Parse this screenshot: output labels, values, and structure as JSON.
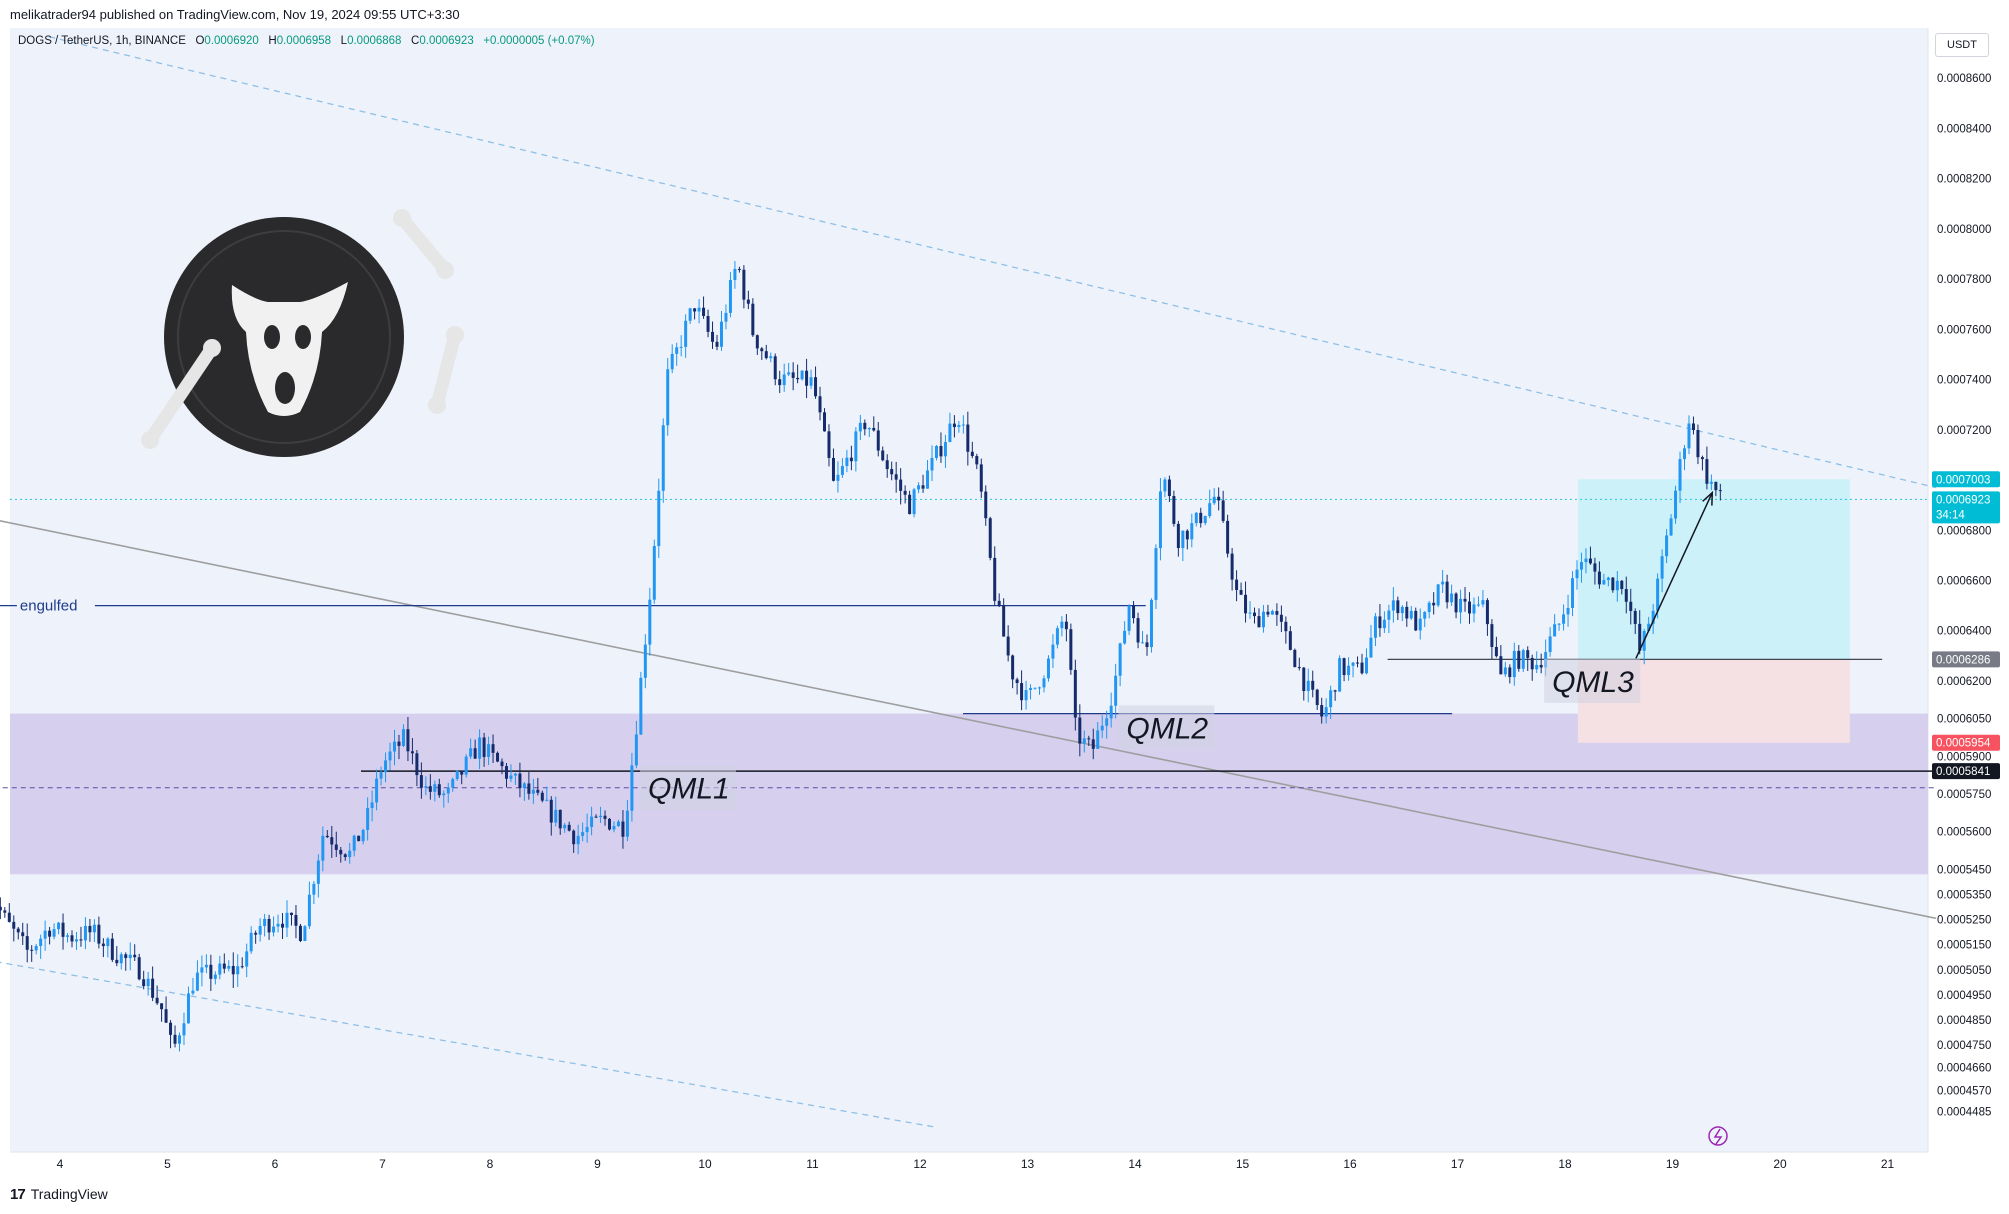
{
  "header": {
    "publish_text": "melikatrader94 published on TradingView.com, Nov 19, 2024 09:55 UTC+3:30"
  },
  "legend": {
    "symbol": "DOGS / TetherUS, 1h, BINANCE",
    "o_label": "O",
    "o_value": "0.0006920",
    "h_label": "H",
    "h_value": "0.0006958",
    "l_label": "L",
    "l_value": "0.0006868",
    "c_label": "C",
    "c_value": "0.0006923",
    "change": "+0.0000005 (+0.07%)"
  },
  "currency": "USDT",
  "footer": {
    "logo": "17",
    "brand": "TradingView"
  },
  "colors": {
    "up": "#2196f3",
    "down": "#152b6b",
    "zone": "#d6d0ee",
    "target": "#ccf1f8",
    "stop": "#f5e0e3",
    "trendline": "#8fbfe6",
    "channel": "#9e9e9e",
    "price_line": "#26c6da"
  },
  "chart_data": {
    "type": "candlestick",
    "symbol": "DOGS / TetherUS",
    "timeframe": "1h",
    "ylim": [
      0.000442,
      0.000876
    ],
    "x_ticks": [
      "4",
      "5",
      "6",
      "7",
      "8",
      "9",
      "10",
      "11",
      "12",
      "13",
      "14",
      "15",
      "16",
      "17",
      "18",
      "19",
      "20",
      "21"
    ],
    "y_ticks": [
      "0.0008600",
      "0.0008400",
      "0.0008200",
      "0.0008000",
      "0.0007800",
      "0.0007600",
      "0.0007400",
      "0.0007200",
      "0.0006800",
      "0.0006600",
      "0.0006400",
      "0.0006200",
      "0.0006050",
      "0.0005900",
      "0.0005750",
      "0.0005600",
      "0.0005450",
      "0.0005350",
      "0.0005250",
      "0.0005150",
      "0.0005050",
      "0.0004950",
      "0.0004850",
      "0.0004750",
      "0.0004660",
      "0.0004570",
      "0.0004485"
    ],
    "price_tags": [
      {
        "label": "0.0007003",
        "value": 0.0007003,
        "bg": "#00bcd4",
        "fg": "#ffffff"
      },
      {
        "label": "0.0006923",
        "value": 0.0006923,
        "bg": "#00bcd4",
        "fg": "#ffffff",
        "sub": "34:14"
      },
      {
        "label": "0.0006286",
        "value": 0.0006286,
        "bg": "#787b86",
        "fg": "#ffffff"
      },
      {
        "label": "0.0005954",
        "value": 0.0005954,
        "bg": "#f7525f",
        "fg": "#ffffff"
      },
      {
        "label": "0.0005841",
        "value": 0.0005841,
        "bg": "#131722",
        "fg": "#ffffff"
      }
    ],
    "annotations": [
      {
        "text": "engulfed",
        "day": 3.32,
        "value": 0.00065
      },
      {
        "text": "QML1",
        "day": 9.47,
        "value": 0.0005775
      },
      {
        "text": "QML2",
        "day": 13.92,
        "value": 0.0006015
      },
      {
        "text": "QML3",
        "day": 17.88,
        "value": 0.00062
      }
    ],
    "levels": [
      {
        "name": "engulfed",
        "value": 0.00065,
        "from_day": 3.3,
        "to_day": 14.1
      },
      {
        "name": "QML1",
        "value": 0.0005841,
        "from_day": 6.8,
        "to_day": 21.45
      },
      {
        "name": "QML2",
        "value": 0.000607,
        "from_day": 12.4,
        "to_day": 16.95
      },
      {
        "name": "QML3",
        "value": 0.0006286,
        "from_day": 16.35,
        "to_day": 20.95
      },
      {
        "name": "zone-mid",
        "value": 0.0005775,
        "from_day": 3.3,
        "to_day": 21.45
      }
    ],
    "zone": {
      "top": 0.000607,
      "bottom": 0.000543
    },
    "position": {
      "from_day": 18.12,
      "to_day": 20.65,
      "entry": 0.0006286,
      "target": 0.0007003,
      "stop": 0.0005954
    },
    "trendlines": [
      {
        "name": "upper-channel",
        "from": [
          3.9,
          0.0008765
        ],
        "to": [
          21.45,
          0.000697
        ]
      },
      {
        "name": "lower-channel",
        "from": [
          3.3,
          0.000509
        ],
        "to": [
          12.15,
          0.0004423
        ]
      },
      {
        "name": "grey-diagonal",
        "from": [
          3.3,
          0.000685
        ],
        "to": [
          21.45,
          0.0005255
        ]
      }
    ],
    "arrow": {
      "from": [
        18.66,
        0.000629
      ],
      "to": [
        19.37,
        0.000695
      ]
    },
    "keypoints": [
      [
        3.32,
        0.000538
      ],
      [
        3.5,
        0.000524
      ],
      [
        3.7,
        0.000512
      ],
      [
        3.9,
        0.000522
      ],
      [
        4.1,
        0.000518
      ],
      [
        4.3,
        0.00052
      ],
      [
        4.5,
        0.000512
      ],
      [
        4.75,
        0.000505
      ],
      [
        4.95,
        0.000489
      ],
      [
        5.05,
        0.000472
      ],
      [
        5.25,
        0.000502
      ],
      [
        5.45,
        0.000504
      ],
      [
        5.65,
        0.000505
      ],
      [
        5.85,
        0.000522
      ],
      [
        6.05,
        0.000526
      ],
      [
        6.25,
        0.00052
      ],
      [
        6.45,
        0.00056
      ],
      [
        6.7,
        0.000551
      ],
      [
        6.85,
        0.000564
      ],
      [
        7.0,
        0.000587
      ],
      [
        7.2,
        0.000597
      ],
      [
        7.4,
        0.000577
      ],
      [
        7.6,
        0.000574
      ],
      [
        7.9,
        0.000595
      ],
      [
        8.2,
        0.000581
      ],
      [
        8.5,
        0.00057
      ],
      [
        8.8,
        0.000558
      ],
      [
        9.05,
        0.000565
      ],
      [
        9.25,
        0.000562
      ],
      [
        9.35,
        0.000598
      ],
      [
        9.5,
        0.00066
      ],
      [
        9.65,
        0.000741
      ],
      [
        9.9,
        0.00077
      ],
      [
        10.1,
        0.000752
      ],
      [
        10.3,
        0.000787
      ],
      [
        10.45,
        0.000758
      ],
      [
        10.7,
        0.00074
      ],
      [
        11.0,
        0.000739
      ],
      [
        11.2,
        0.000697
      ],
      [
        11.5,
        0.000724
      ],
      [
        11.7,
        0.000705
      ],
      [
        11.9,
        0.00069
      ],
      [
        12.1,
        0.000705
      ],
      [
        12.35,
        0.000727
      ],
      [
        12.55,
        0.0007
      ],
      [
        12.7,
        0.000653
      ],
      [
        12.85,
        0.000624
      ],
      [
        13.0,
        0.000612
      ],
      [
        13.2,
        0.000628
      ],
      [
        13.35,
        0.000647
      ],
      [
        13.45,
        0.000599
      ],
      [
        13.6,
        0.000592
      ],
      [
        13.8,
        0.000617
      ],
      [
        13.95,
        0.000652
      ],
      [
        14.1,
        0.000628
      ],
      [
        14.25,
        0.000705
      ],
      [
        14.4,
        0.000677
      ],
      [
        14.55,
        0.000682
      ],
      [
        14.75,
        0.000694
      ],
      [
        14.95,
        0.000654
      ],
      [
        15.1,
        0.000643
      ],
      [
        15.25,
        0.00065
      ],
      [
        15.45,
        0.000633
      ],
      [
        15.6,
        0.000617
      ],
      [
        15.75,
        0.000605
      ],
      [
        15.9,
        0.000625
      ],
      [
        16.1,
        0.000624
      ],
      [
        16.25,
        0.000644
      ],
      [
        16.45,
        0.000651
      ],
      [
        16.65,
        0.000641
      ],
      [
        16.85,
        0.000657
      ],
      [
        17.05,
        0.000648
      ],
      [
        17.25,
        0.000649
      ],
      [
        17.4,
        0.000621
      ],
      [
        17.55,
        0.000629
      ],
      [
        17.75,
        0.000627
      ],
      [
        17.95,
        0.000643
      ],
      [
        18.15,
        0.000669
      ],
      [
        18.35,
        0.00066
      ],
      [
        18.55,
        0.000659
      ],
      [
        18.7,
        0.000631
      ],
      [
        18.85,
        0.000655
      ],
      [
        19.0,
        0.000689
      ],
      [
        19.15,
        0.000725
      ],
      [
        19.3,
        0.000703
      ],
      [
        19.45,
        0.000692
      ]
    ]
  }
}
